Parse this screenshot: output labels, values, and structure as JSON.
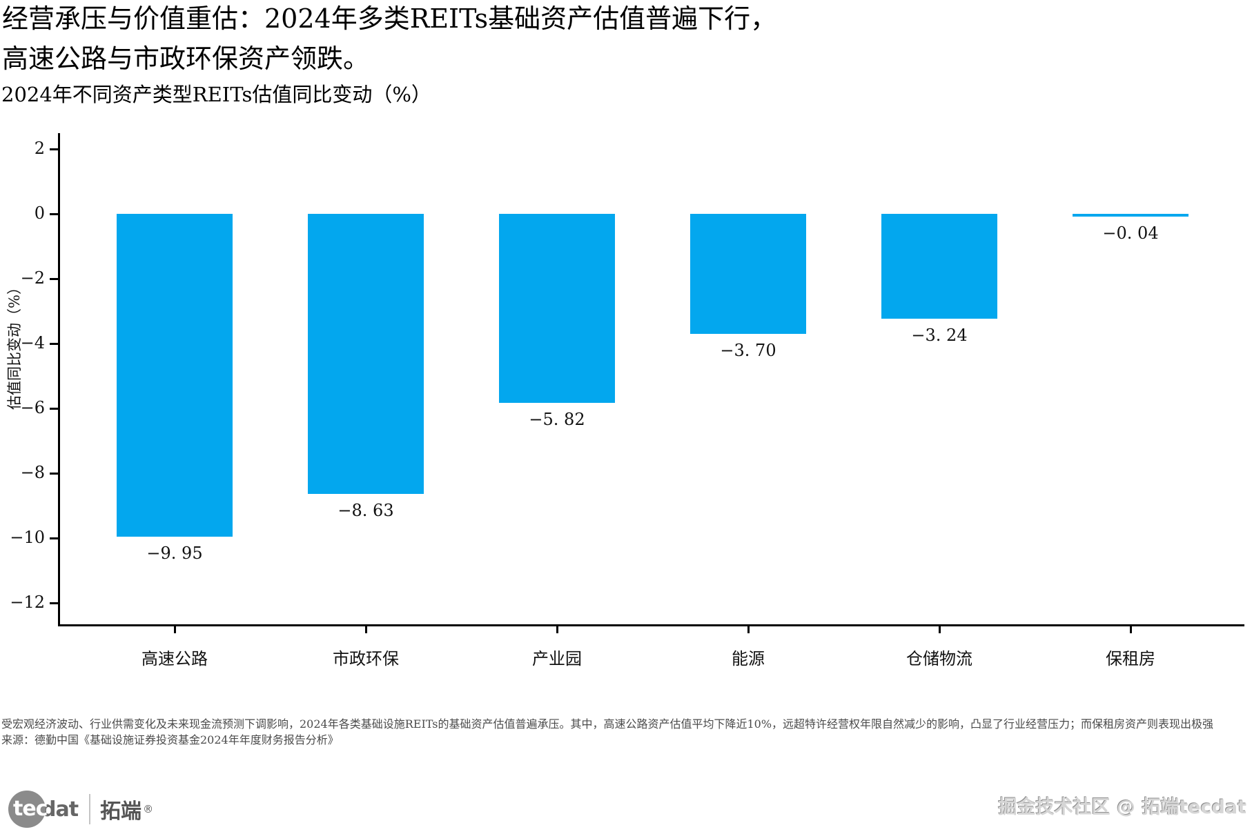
{
  "header": {
    "title_line1": "经营承压与价值重估：2024年多类REITs基础资产估值普遍下行，",
    "title_line2": "高速公路与市政环保资产领跌。",
    "subtitle": "2024年不同资产类型REITs估值同比变动（%）"
  },
  "chart_data": {
    "type": "bar",
    "title": "2024年不同资产类型REITs估值同比变动（%）",
    "categories": [
      "高速公路",
      "市政环保",
      "产业园",
      "能源",
      "仓储物流",
      "保租房"
    ],
    "values": [
      -9.95,
      -8.63,
      -5.82,
      -3.7,
      -3.24,
      -0.04
    ],
    "value_labels": [
      "−9. 95",
      "−8. 63",
      "−5. 82",
      "−3. 70",
      "−3. 24",
      "−0. 04"
    ],
    "xlabel": "",
    "ylabel": "估值同比变动（%）",
    "yticks": [
      2,
      0,
      -2,
      -4,
      -6,
      -8,
      -10,
      -12
    ],
    "ytick_labels": [
      "2",
      "0",
      "−2",
      "−4",
      "−6",
      "−8",
      "−10",
      "−12"
    ],
    "ylim": [
      2.5,
      -12.66
    ],
    "bar_color": "#03a7ee",
    "grid": false,
    "legend_position": "none"
  },
  "footer": {
    "note": "受宏观经济波动、行业供需变化及未来现金流预测下调影响，2024年各类基础设施REITs的基础资产估值普遍承压。其中，高速公路资产估值平均下降近10%，远超特许经营权年限自然减少的影响，凸显了行业经营压力；而保租房资产则表现出极强",
    "source": "来源：德勤中国《基础设施证券投资基金2024年年度财务报告分析》"
  },
  "branding": {
    "logo_tec": "tec",
    "logo_dat": "dat",
    "logo_cn": "拓端",
    "logo_reg": "®",
    "watermark": "掘金技术社区 @ 拓端tecdat"
  }
}
